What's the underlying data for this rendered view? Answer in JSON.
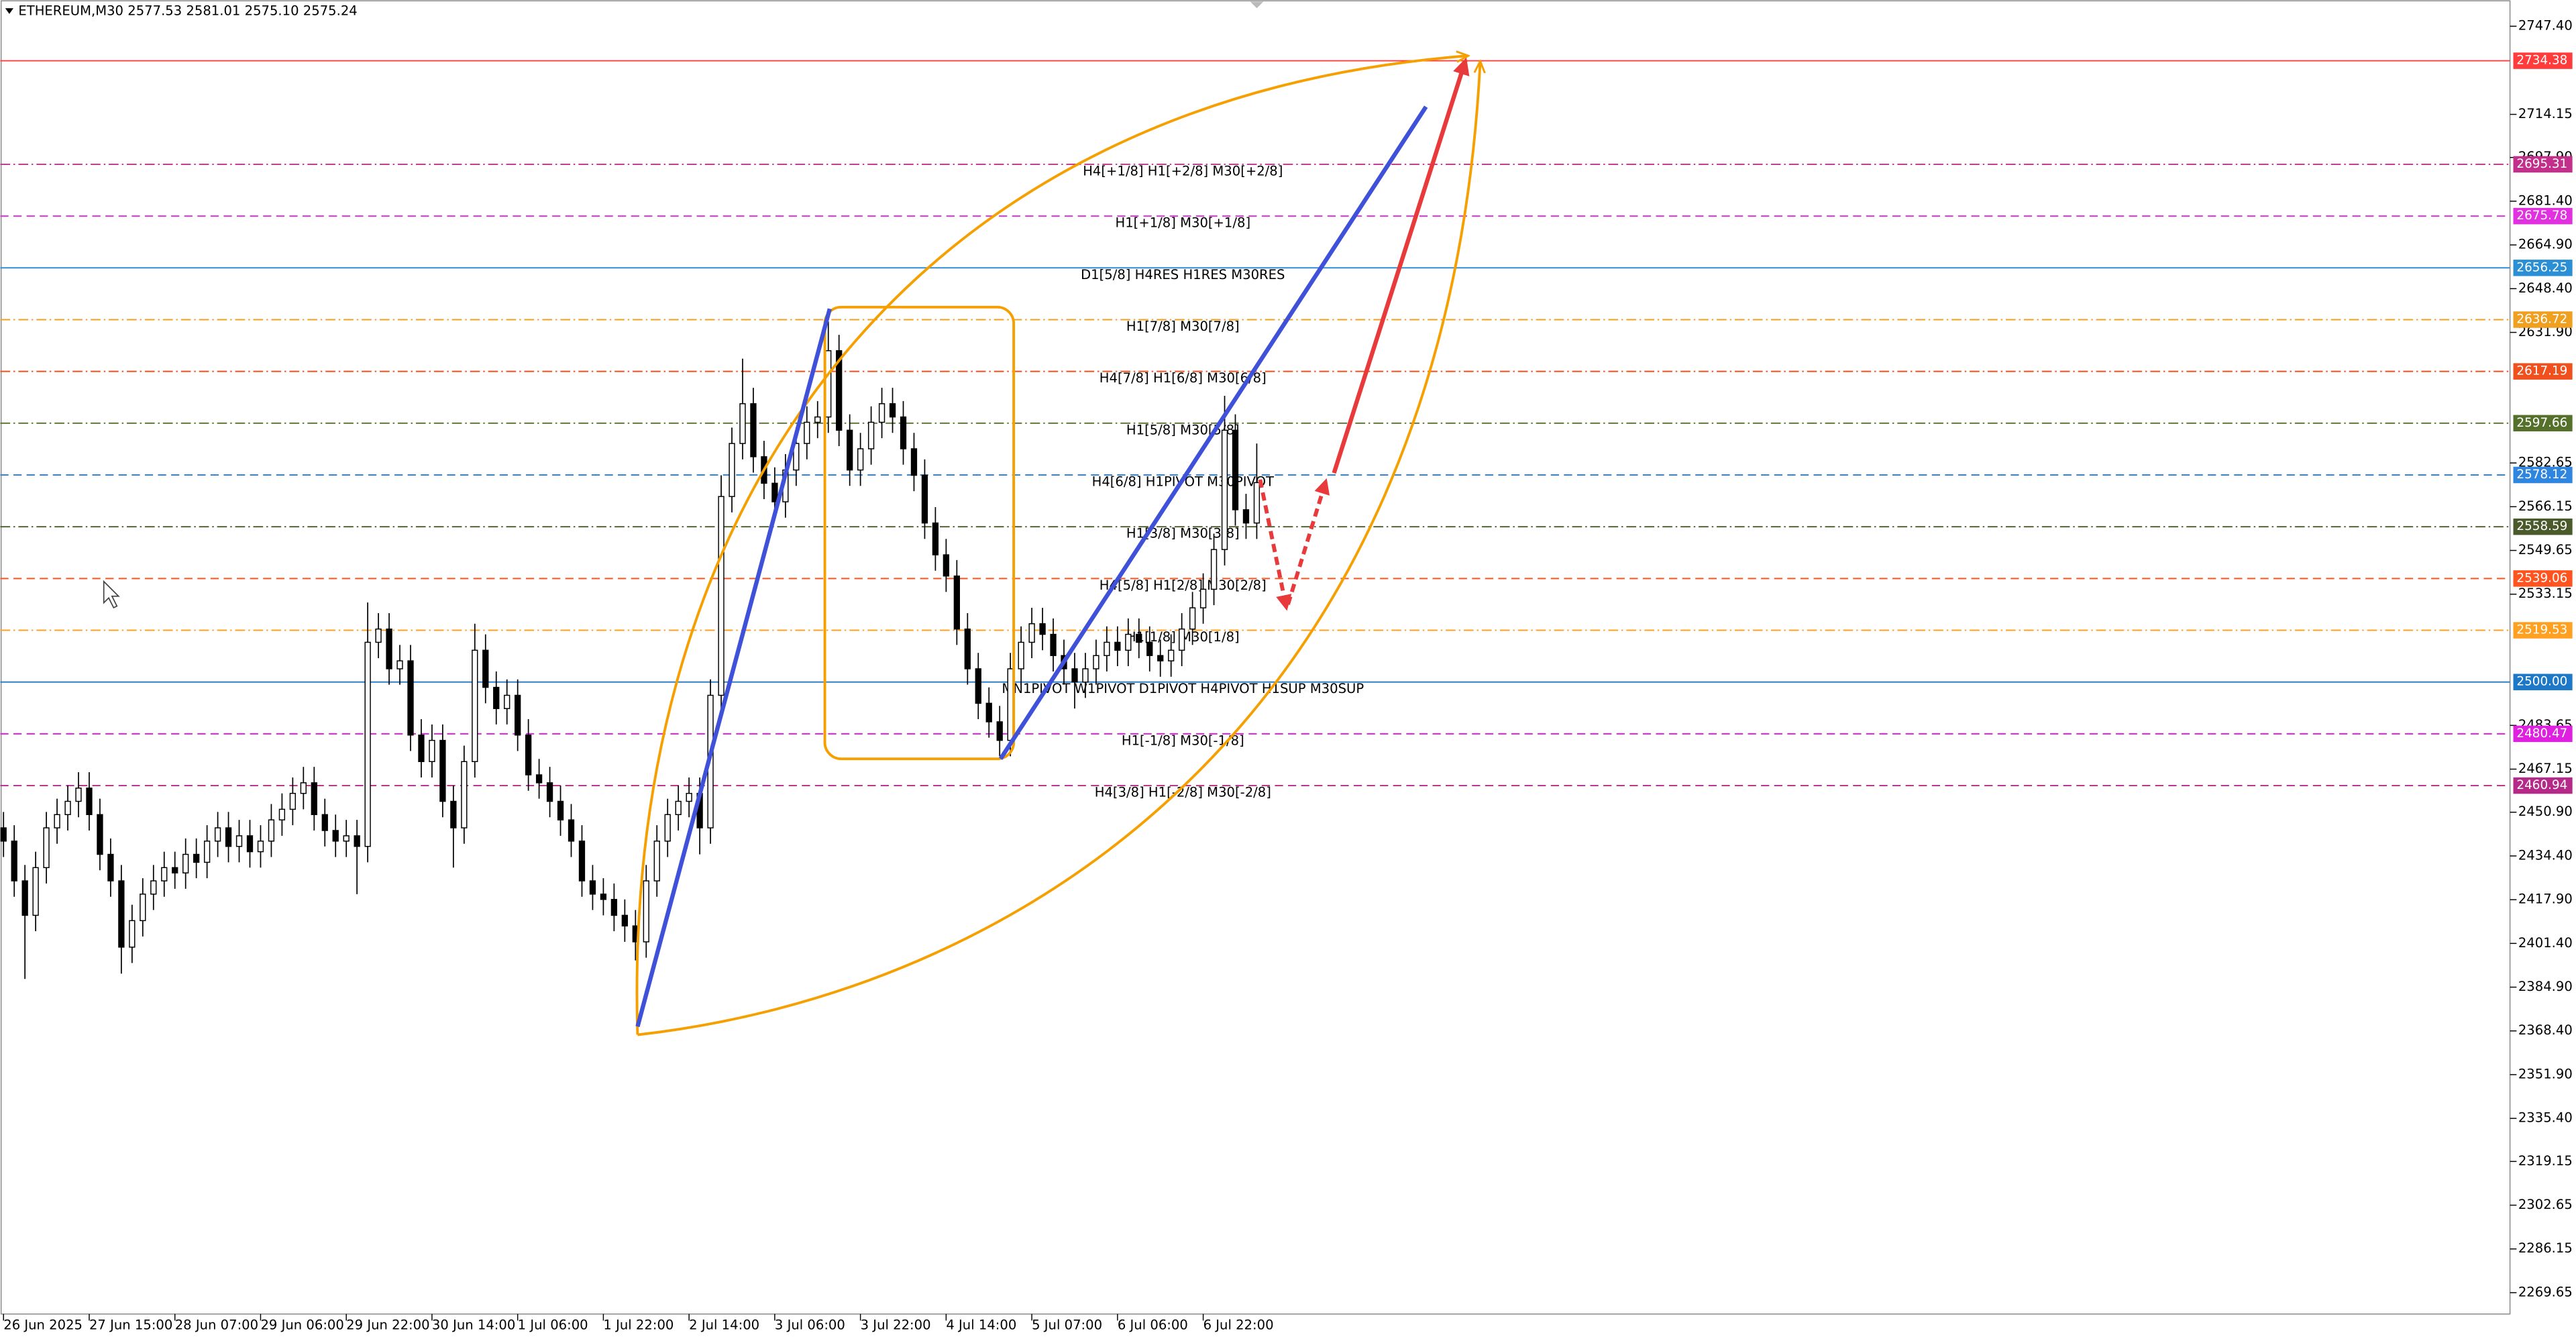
{
  "chart_data": {
    "type": "candlestick",
    "title": "ETHEREUM,M30  2577.53 2581.01 2575.10 2575.24",
    "xlim": [
      -0.3,
      234
    ],
    "xticks": [
      {
        "value": 0,
        "label": "26 Jun 2025"
      },
      {
        "value": 8,
        "label": "27 Jun 15:00"
      },
      {
        "value": 16,
        "label": "28 Jun 07:00"
      },
      {
        "value": 24,
        "label": "29 Jun 06:00"
      },
      {
        "value": 32,
        "label": "29 Jun 22:00"
      },
      {
        "value": 40,
        "label": "30 Jun 14:00"
      },
      {
        "value": 48,
        "label": "1 Jul 06:00"
      },
      {
        "value": 56,
        "label": "1 Jul 22:00"
      },
      {
        "value": 64,
        "label": "2 Jul 14:00"
      },
      {
        "value": 72,
        "label": "3 Jul 06:00"
      },
      {
        "value": 80,
        "label": "3 Jul 22:00"
      },
      {
        "value": 88,
        "label": "4 Jul 14:00"
      },
      {
        "value": 96,
        "label": "5 Jul 07:00"
      },
      {
        "value": 104,
        "label": "6 Jul 06:00"
      },
      {
        "value": 112,
        "label": "6 Jul 22:00"
      }
    ],
    "ylim": [
      2261.6,
      2757.3
    ],
    "yticks": [
      {
        "value": 2747.4,
        "label": "2747.40"
      },
      {
        "value": 2714.15,
        "label": "2714.15"
      },
      {
        "value": 2697.9,
        "label": "2697.90"
      },
      {
        "value": 2681.4,
        "label": "2681.40"
      },
      {
        "value": 2664.9,
        "label": "2664.90"
      },
      {
        "value": 2648.4,
        "label": "2648.40"
      },
      {
        "value": 2631.9,
        "label": "2631.90"
      },
      {
        "value": 2582.65,
        "label": "2582.65"
      },
      {
        "value": 2566.15,
        "label": "2566.15"
      },
      {
        "value": 2549.65,
        "label": "2549.65"
      },
      {
        "value": 2533.15,
        "label": "2533.15"
      },
      {
        "value": 2483.65,
        "label": "2483.65"
      },
      {
        "value": 2467.15,
        "label": "2467.15"
      },
      {
        "value": 2450.9,
        "label": "2450.90"
      },
      {
        "value": 2434.4,
        "label": "2434.40"
      },
      {
        "value": 2417.9,
        "label": "2417.90"
      },
      {
        "value": 2401.4,
        "label": "2401.40"
      },
      {
        "value": 2384.9,
        "label": "2384.90"
      },
      {
        "value": 2368.4,
        "label": "2368.40"
      },
      {
        "value": 2351.9,
        "label": "2351.90"
      },
      {
        "value": 2335.4,
        "label": "2335.40"
      },
      {
        "value": 2319.15,
        "label": "2319.15"
      },
      {
        "value": 2302.65,
        "label": "2302.65"
      },
      {
        "value": 2286.15,
        "label": "2286.15"
      },
      {
        "value": 2269.65,
        "label": "2269.65"
      }
    ],
    "grid": false,
    "up_color": "#ffffff",
    "down_color": "#000000",
    "wick_color": "#000000",
    "open": [
      2445,
      2440,
      2425,
      2412,
      2430,
      2445,
      2450,
      2455,
      2460,
      2450,
      2435,
      2425,
      2400,
      2410,
      2420,
      2425,
      2430,
      2428,
      2435,
      2432,
      2440,
      2445,
      2438,
      2442,
      2436,
      2440,
      2448,
      2452,
      2458,
      2462,
      2450,
      2444,
      2440,
      2442,
      2438,
      2515,
      2520,
      2505,
      2508,
      2480,
      2470,
      2478,
      2455,
      2445,
      2470,
      2512,
      2498,
      2490,
      2495,
      2480,
      2465,
      2462,
      2455,
      2448,
      2440,
      2425,
      2420,
      2418,
      2412,
      2408,
      2402,
      2425,
      2440,
      2450,
      2455,
      2458,
      2445,
      2495,
      2570,
      2590,
      2605,
      2585,
      2575,
      2568,
      2580,
      2590,
      2598,
      2600,
      2625,
      2595,
      2580,
      2588,
      2598,
      2605,
      2600,
      2588,
      2578,
      2560,
      2548,
      2540,
      2520,
      2505,
      2492,
      2485,
      2478,
      2505,
      2515,
      2522,
      2518,
      2510,
      2505,
      2500,
      2505,
      2510,
      2515,
      2512,
      2518,
      2515,
      2510,
      2508,
      2512,
      2520,
      2528,
      2535,
      2550,
      2595,
      2565,
      2560
    ],
    "high": [
      2451,
      2446,
      2431,
      2436,
      2451,
      2456,
      2461,
      2466,
      2466,
      2456,
      2441,
      2431,
      2416,
      2426,
      2431,
      2436,
      2436,
      2441,
      2441,
      2446,
      2451,
      2451,
      2448,
      2448,
      2446,
      2454,
      2458,
      2464,
      2468,
      2468,
      2456,
      2450,
      2448,
      2448,
      2530,
      2526,
      2526,
      2514,
      2514,
      2486,
      2484,
      2484,
      2461,
      2476,
      2522,
      2518,
      2504,
      2501,
      2501,
      2486,
      2471,
      2468,
      2461,
      2454,
      2446,
      2431,
      2426,
      2424,
      2418,
      2414,
      2431,
      2446,
      2456,
      2461,
      2464,
      2464,
      2501,
      2578,
      2596,
      2622,
      2611,
      2591,
      2581,
      2586,
      2596,
      2604,
      2606,
      2636,
      2631,
      2601,
      2594,
      2604,
      2611,
      2611,
      2606,
      2594,
      2584,
      2566,
      2554,
      2546,
      2526,
      2511,
      2498,
      2491,
      2511,
      2521,
      2528,
      2528,
      2524,
      2516,
      2511,
      2511,
      2516,
      2521,
      2521,
      2524,
      2524,
      2521,
      2516,
      2518,
      2526,
      2534,
      2541,
      2556,
      2608,
      2601,
      2571,
      2590
    ],
    "low": [
      2434,
      2419,
      2388,
      2406,
      2424,
      2439,
      2444,
      2449,
      2444,
      2429,
      2419,
      2390,
      2394,
      2404,
      2414,
      2419,
      2422,
      2422,
      2426,
      2426,
      2434,
      2432,
      2432,
      2430,
      2430,
      2434,
      2442,
      2446,
      2452,
      2444,
      2438,
      2434,
      2434,
      2420,
      2432,
      2509,
      2499,
      2499,
      2474,
      2464,
      2464,
      2449,
      2430,
      2439,
      2464,
      2492,
      2484,
      2484,
      2474,
      2459,
      2456,
      2449,
      2442,
      2434,
      2419,
      2414,
      2412,
      2406,
      2402,
      2395,
      2396,
      2419,
      2434,
      2444,
      2449,
      2435,
      2439,
      2489,
      2564,
      2584,
      2579,
      2569,
      2562,
      2562,
      2574,
      2584,
      2592,
      2594,
      2589,
      2574,
      2574,
      2582,
      2592,
      2594,
      2582,
      2572,
      2554,
      2542,
      2534,
      2514,
      2499,
      2486,
      2479,
      2472,
      2472,
      2499,
      2509,
      2512,
      2504,
      2499,
      2490,
      2494,
      2499,
      2504,
      2506,
      2506,
      2509,
      2504,
      2502,
      2502,
      2506,
      2514,
      2522,
      2529,
      2544,
      2559,
      2554,
      2554
    ],
    "close": [
      2440,
      2425,
      2412,
      2430,
      2445,
      2450,
      2455,
      2460,
      2450,
      2435,
      2425,
      2400,
      2410,
      2420,
      2425,
      2430,
      2428,
      2435,
      2432,
      2440,
      2445,
      2438,
      2442,
      2436,
      2440,
      2448,
      2452,
      2458,
      2462,
      2450,
      2444,
      2440,
      2442,
      2438,
      2515,
      2520,
      2505,
      2508,
      2480,
      2470,
      2478,
      2455,
      2445,
      2470,
      2512,
      2498,
      2490,
      2495,
      2480,
      2465,
      2462,
      2455,
      2448,
      2440,
      2425,
      2420,
      2418,
      2412,
      2408,
      2402,
      2425,
      2440,
      2450,
      2455,
      2458,
      2445,
      2495,
      2570,
      2590,
      2605,
      2585,
      2575,
      2568,
      2580,
      2590,
      2598,
      2600,
      2625,
      2595,
      2580,
      2588,
      2598,
      2605,
      2600,
      2588,
      2578,
      2560,
      2548,
      2540,
      2520,
      2505,
      2492,
      2485,
      2478,
      2505,
      2515,
      2522,
      2518,
      2510,
      2505,
      2500,
      2505,
      2510,
      2515,
      2512,
      2518,
      2515,
      2510,
      2508,
      2512,
      2520,
      2528,
      2535,
      2550,
      2595,
      2565,
      2560,
      2575.24
    ],
    "levels": [
      {
        "value": 2734.38,
        "color": "#ff3b3b",
        "style": "solid"
      },
      {
        "value": 2695.31,
        "color": "#c2308c",
        "style": "dashdot",
        "name": "H4[+1/8] H1[+2/8] M30[+2/8]"
      },
      {
        "value": 2675.78,
        "color": "#e030e0",
        "style": "dashed",
        "name": "H1[+1/8] M30[+1/8]"
      },
      {
        "value": 2656.25,
        "color": "#2b8fd6",
        "style": "solid",
        "name": "D1[5/8] H4RES H1RES M30RES"
      },
      {
        "value": 2636.72,
        "color": "#f0a020",
        "style": "dashdot",
        "name": "H1[7/8] M30[7/8]"
      },
      {
        "value": 2617.19,
        "color": "#f0501e",
        "style": "dashdot",
        "name": "H4[7/8] H1[6/8] M30[6/8]"
      },
      {
        "value": 2597.66,
        "color": "#55702a",
        "style": "dashdot",
        "name": "H1[5/8] M30[5/8]"
      },
      {
        "value": 2578.12,
        "color": "#2f86e0",
        "style": "dashed",
        "name": "H4[6/8] H1PIVOT M30PIVOT"
      },
      {
        "value": 2558.59,
        "color": "#4b5a2a",
        "style": "dashdot",
        "name": "H1[3/8] M30[3/8]"
      },
      {
        "value": 2539.06,
        "color": "#ff5420",
        "style": "dashed",
        "name": "H4[5/8] H1[2/8] M30[2/8]"
      },
      {
        "value": 2519.53,
        "color": "#ffa020",
        "style": "dashdot",
        "name": "H1[1/8] M30[1/8]"
      },
      {
        "value": 2500.0,
        "label": "2500.00",
        "color": "#1e78c8",
        "style": "solid",
        "name": "MN1PIVOT W1PIVOT D1PIVOT H4PIVOT H1SUP M30SUP"
      },
      {
        "value": 2480.47,
        "color": "#e020e0",
        "style": "dashed",
        "name": "H1[-1/8] M30[-1/8]"
      },
      {
        "value": 2460.94,
        "color": "#b52a88",
        "style": "dashed",
        "name": "H4[3/8] H1[-2/8] M30[-2/8]"
      }
    ]
  }
}
